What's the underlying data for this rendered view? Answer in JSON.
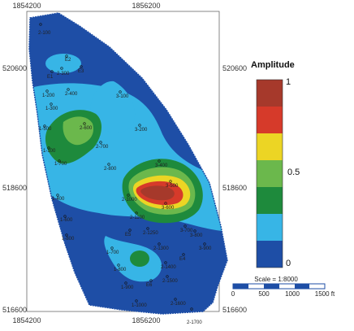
{
  "axes": {
    "x_top": [
      "1854200",
      "1856200"
    ],
    "x_bottom": [
      "1854200",
      "1856200"
    ],
    "y_left": [
      "520600",
      "518600",
      "516600"
    ],
    "y_right": [
      "520600",
      "518600",
      "516600"
    ]
  },
  "legend": {
    "title": "Amplitude",
    "labels": [
      "1",
      "0.5",
      "0"
    ],
    "colors": [
      "#a6392b",
      "#d63a2a",
      "#ecd524",
      "#6bb84c",
      "#1e8a3c",
      "#37b5e6",
      "#1e4ea6"
    ]
  },
  "scale": {
    "label": "Scale = 1:8000",
    "ticks": [
      "0",
      "500",
      "1000",
      "1500 ft"
    ]
  },
  "colors": {
    "deep_blue": "#1e4ea6",
    "light_blue": "#37b5e6",
    "dark_green": "#1e8a3c",
    "light_green": "#6bb84c",
    "yellow": "#ecd524",
    "red": "#d63a2a",
    "dark_red": "#a6392b"
  },
  "wells": [
    "2-100",
    "E2",
    "E1",
    "E3",
    "2-300",
    "2-400",
    "1-300",
    "1-200",
    "3-100",
    "3-200",
    "2-600",
    "1-500",
    "1-100",
    "1-700",
    "2-700",
    "2-800",
    "3-400",
    "3-500",
    "1-400",
    "2-1000",
    "1-600",
    "2-1100",
    "3-600",
    "3-700",
    "1-800",
    "3-800",
    "3-900",
    "E5",
    "2-1250",
    "E4",
    "1-700",
    "2-1300",
    "1-800",
    "1-900",
    "2-1400",
    "2-1500",
    "E6",
    "1-1000",
    "2-1600",
    "2-1700"
  ]
}
